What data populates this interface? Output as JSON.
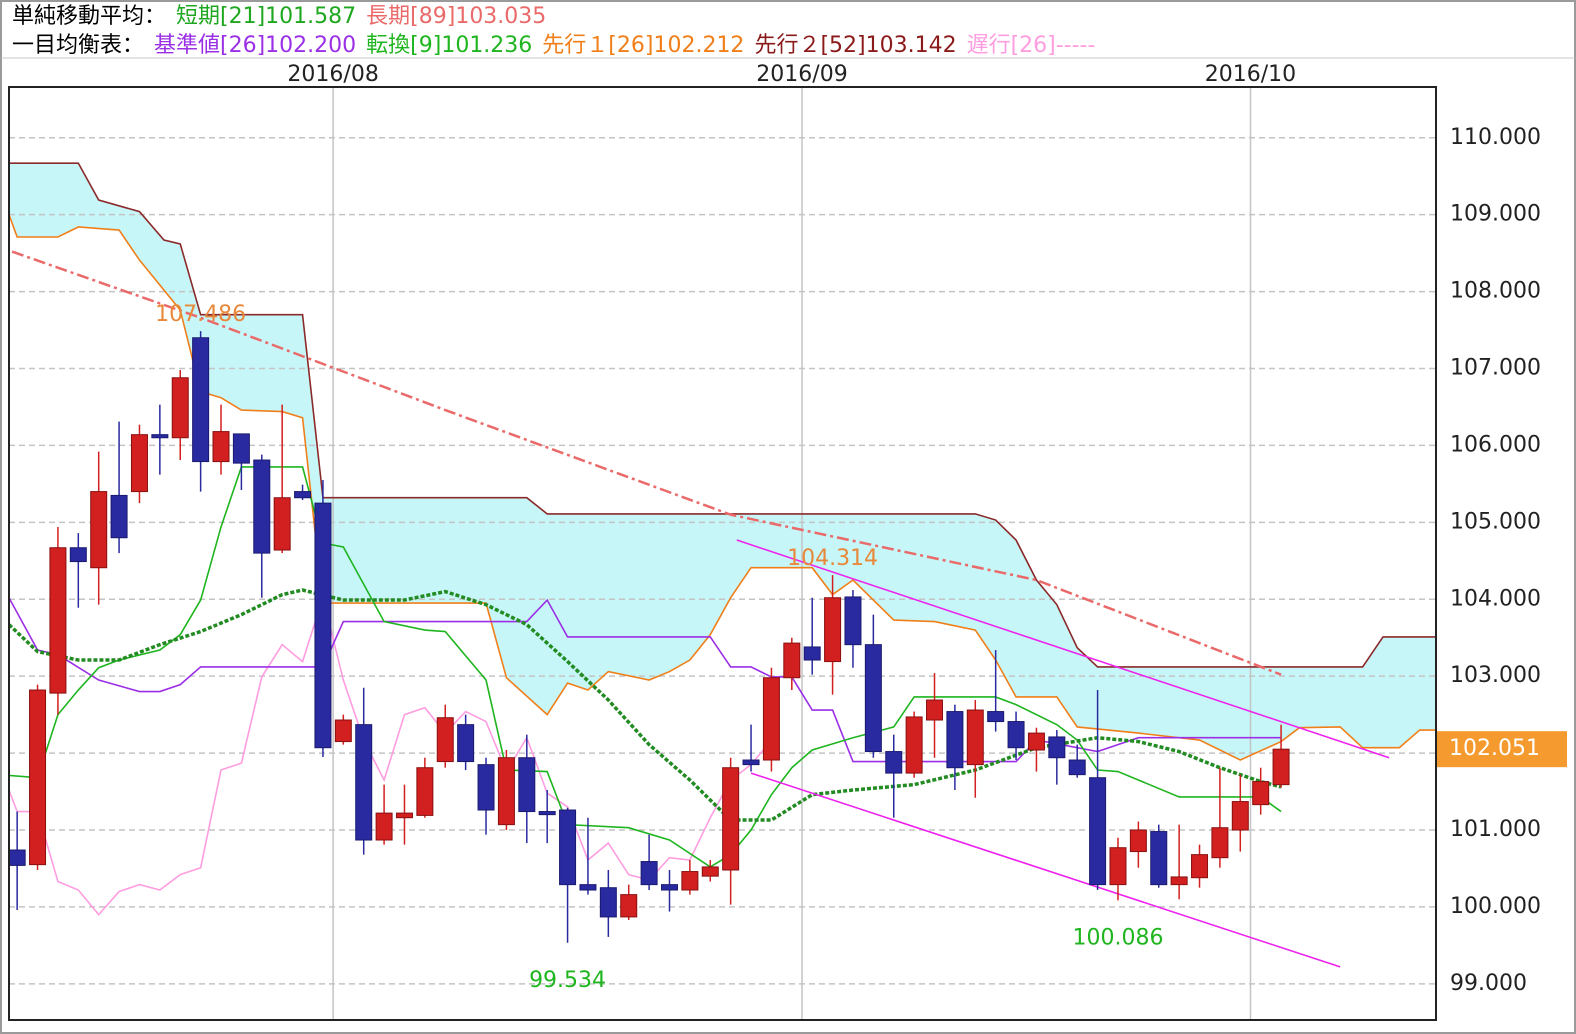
{
  "header": {
    "rows": [
      {
        "label": "単純移動平均：",
        "items": [
          {
            "text": "短期[21]101.587",
            "color": "#1fa71f"
          },
          {
            "text": "長期[89]103.035",
            "color": "#ea6a6a"
          }
        ]
      },
      {
        "label": "一目均衡表：",
        "items": [
          {
            "text": "基準値[26]102.200",
            "color": "#9b2fe6"
          },
          {
            "text": "転換[9]101.236",
            "color": "#1fb51f"
          },
          {
            "text": "先行１[26]102.212",
            "color": "#f07f1a"
          },
          {
            "text": "先行２[52]103.142",
            "color": "#8b1a1a"
          },
          {
            "text": "遅行[26]-----",
            "color": "#ff9de0"
          }
        ]
      }
    ]
  },
  "chart_data": {
    "type": "candlestick",
    "xlim": [
      -0.4,
      69.6
    ],
    "ylim": [
      98.53,
      110.66
    ],
    "xticks": [
      {
        "value": 15.5,
        "label": "2016/08"
      },
      {
        "value": 38.5,
        "label": "2016/09"
      },
      {
        "value": 60.5,
        "label": "2016/10"
      }
    ],
    "yticks": [
      {
        "value": 99,
        "label": "99.000"
      },
      {
        "value": 100,
        "label": "100.000"
      },
      {
        "value": 101,
        "label": "101.000"
      },
      {
        "value": 102,
        "label": "102.000"
      },
      {
        "value": 103,
        "label": "103.000"
      },
      {
        "value": 104,
        "label": "104.000"
      },
      {
        "value": 105,
        "label": "105.000"
      },
      {
        "value": 106,
        "label": "106.000"
      },
      {
        "value": 107,
        "label": "107.000"
      },
      {
        "value": 108,
        "label": "108.000"
      },
      {
        "value": 109,
        "label": "109.000"
      },
      {
        "value": 110,
        "label": "110.000"
      }
    ],
    "grid": true,
    "cloud_color": "#c6f6f8",
    "candles": {
      "up_color": "#d21f1f",
      "down_color": "#2a2aa0",
      "x": [
        0,
        1,
        2,
        3,
        4,
        5,
        6,
        7,
        8,
        9,
        10,
        11,
        12,
        13,
        14,
        15,
        16,
        17,
        18,
        19,
        20,
        21,
        22,
        23,
        24,
        25,
        26,
        27,
        28,
        29,
        30,
        31,
        32,
        33,
        34,
        35,
        36,
        37,
        38,
        39,
        40,
        41,
        42,
        43,
        44,
        45,
        46,
        47,
        48,
        49,
        50,
        51,
        52,
        53,
        54,
        55,
        56,
        57,
        58,
        59,
        60,
        61,
        62
      ],
      "open": [
        100.74,
        100.55,
        102.78,
        104.67,
        104.41,
        105.35,
        105.4,
        106.14,
        106.1,
        107.4,
        105.79,
        106.15,
        105.81,
        104.64,
        105.4,
        105.25,
        102.15,
        102.37,
        100.87,
        101.16,
        101.19,
        101.89,
        102.37,
        101.85,
        101.07,
        101.94,
        101.24,
        101.26,
        100.29,
        100.25,
        99.87,
        100.59,
        100.29,
        100.22,
        100.4,
        100.48,
        101.91,
        101.91,
        102.98,
        103.38,
        103.19,
        104.03,
        103.41,
        102.02,
        101.74,
        102.43,
        102.54,
        101.85,
        102.54,
        102.41,
        102.04,
        102.21,
        101.91,
        101.68,
        100.29,
        100.72,
        100.98,
        100.29,
        100.38,
        100.64,
        101.0,
        101.33,
        101.59
      ],
      "high": [
        101.24,
        102.89,
        104.94,
        104.86,
        105.92,
        106.31,
        106.27,
        106.53,
        106.98,
        107.486,
        106.53,
        106.15,
        105.88,
        106.53,
        105.49,
        105.55,
        102.5,
        102.85,
        101.59,
        101.59,
        101.94,
        102.63,
        102.5,
        101.94,
        102.04,
        102.24,
        101.52,
        101.29,
        101.16,
        100.48,
        100.29,
        100.94,
        100.48,
        100.61,
        100.61,
        101.94,
        102.37,
        103.11,
        103.5,
        104.02,
        104.314,
        104.12,
        103.8,
        102.24,
        102.54,
        103.04,
        102.63,
        102.69,
        103.34,
        102.54,
        102.33,
        102.3,
        102.11,
        102.82,
        100.9,
        101.11,
        101.07,
        101.07,
        100.81,
        101.81,
        101.72,
        101.81,
        102.37
      ],
      "low": [
        99.96,
        100.48,
        102.5,
        103.89,
        103.93,
        104.6,
        105.25,
        105.62,
        105.81,
        105.4,
        105.62,
        105.42,
        104.02,
        104.6,
        105.29,
        101.95,
        102.11,
        100.68,
        100.81,
        100.81,
        101.16,
        101.81,
        101.78,
        100.94,
        101.0,
        100.83,
        100.83,
        99.534,
        100.16,
        99.61,
        99.83,
        100.22,
        99.94,
        100.16,
        100.33,
        100.03,
        101.76,
        101.76,
        102.82,
        103.02,
        102.76,
        103.11,
        101.94,
        101.16,
        101.68,
        101.94,
        101.52,
        101.42,
        102.28,
        101.91,
        101.76,
        101.59,
        101.68,
        100.22,
        100.086,
        100.51,
        100.25,
        100.1,
        100.25,
        100.51,
        100.72,
        101.2,
        101.55
      ],
      "close": [
        100.54,
        102.82,
        104.67,
        104.49,
        105.4,
        104.8,
        106.14,
        106.1,
        106.88,
        105.79,
        106.18,
        105.77,
        104.6,
        105.32,
        105.32,
        102.07,
        102.43,
        100.87,
        101.22,
        101.22,
        101.81,
        102.46,
        101.89,
        101.26,
        101.94,
        101.24,
        101.2,
        100.29,
        100.22,
        99.87,
        100.16,
        100.29,
        100.22,
        100.46,
        100.52,
        101.81,
        101.85,
        102.98,
        103.43,
        103.21,
        104.02,
        103.41,
        102.02,
        101.74,
        102.47,
        102.69,
        101.81,
        102.56,
        102.41,
        102.07,
        102.26,
        101.94,
        101.72,
        100.29,
        100.77,
        101.0,
        100.29,
        100.39,
        100.68,
        101.03,
        101.37,
        101.63,
        102.051
      ]
    },
    "series": [
      {
        "color": "#8b2a2a",
        "style": "solid",
        "cloud_edge": true,
        "x": [
          -0.4,
          3,
          4,
          6,
          7.2,
          8,
          9,
          14,
          15,
          25,
          26,
          47,
          48,
          49,
          50,
          51,
          52,
          53,
          54,
          66,
          67,
          69.6
        ],
        "values": [
          109.67,
          109.67,
          109.19,
          109.04,
          108.67,
          108.62,
          107.7,
          107.7,
          105.32,
          105.32,
          105.11,
          105.11,
          105.03,
          104.77,
          104.25,
          103.93,
          103.37,
          103.12,
          103.12,
          103.12,
          103.51,
          103.51
        ]
      },
      {
        "color": "#f07f1a",
        "style": "solid",
        "cloud_edge": true,
        "x": [
          -0.4,
          0,
          2,
          3,
          5,
          6,
          8,
          9,
          10,
          11,
          13,
          14,
          15,
          23,
          24,
          26,
          27,
          28,
          29,
          31,
          32,
          33,
          34,
          35,
          36,
          39,
          40,
          41,
          43,
          45,
          47,
          48,
          49,
          51,
          52,
          55,
          58,
          60,
          62,
          62.9,
          64.9,
          66,
          67.8,
          68.8,
          69.6
        ],
        "values": [
          109.0,
          108.71,
          108.71,
          108.84,
          108.8,
          108.41,
          107.76,
          106.7,
          106.62,
          106.46,
          106.44,
          106.36,
          103.95,
          103.95,
          102.98,
          102.5,
          102.91,
          102.82,
          103.06,
          102.95,
          103.06,
          103.21,
          103.54,
          104.02,
          104.41,
          104.41,
          104.06,
          104.25,
          103.73,
          103.71,
          103.6,
          103.21,
          102.73,
          102.73,
          102.34,
          102.26,
          102.17,
          101.91,
          102.15,
          102.33,
          102.34,
          102.07,
          102.07,
          102.3,
          102.3
        ]
      },
      {
        "color": "#ea6a6a",
        "style": "dashdot",
        "x": [
          -0.25,
          9,
          21,
          35,
          50,
          62
        ],
        "values": [
          108.52,
          107.66,
          106.46,
          105.1,
          104.25,
          103.02
        ]
      },
      {
        "color": "#ff9de0",
        "style": "solid",
        "x": [
          -0.4,
          0,
          1,
          2,
          3,
          4,
          5,
          6,
          7,
          8,
          9,
          10,
          11,
          12,
          13,
          14,
          15,
          16,
          17,
          18,
          19,
          20,
          21,
          22,
          23,
          24,
          25,
          26,
          27,
          28,
          29,
          30,
          31,
          32,
          33,
          34,
          35,
          36,
          37
        ],
        "values": [
          101.52,
          101.24,
          101.24,
          100.33,
          100.22,
          99.9,
          100.2,
          100.29,
          100.22,
          100.42,
          100.51,
          101.78,
          101.87,
          102.99,
          103.41,
          103.19,
          104.02,
          102.95,
          102.17,
          101.65,
          102.5,
          102.59,
          102.26,
          102.54,
          102.41,
          101.76,
          102.2,
          101.48,
          101.3,
          100.61,
          100.83,
          100.42,
          100.35,
          100.64,
          100.61,
          101.16,
          101.65,
          101.85,
          102.17
        ]
      },
      {
        "color": "#9b2fe6",
        "style": "solid",
        "x": [
          -0.4,
          1,
          2,
          4,
          6,
          7,
          8,
          9,
          15,
          16,
          25,
          26,
          27,
          34,
          35,
          36,
          37,
          38,
          39,
          40,
          41,
          49,
          50,
          53,
          54,
          55,
          62
        ],
        "values": [
          104.02,
          103.34,
          103.28,
          102.95,
          102.8,
          102.8,
          102.89,
          103.12,
          103.12,
          103.71,
          103.71,
          103.99,
          103.51,
          103.51,
          103.12,
          103.12,
          102.99,
          102.99,
          102.56,
          102.56,
          101.89,
          101.89,
          102.17,
          102.02,
          102.11,
          102.2,
          102.2
        ]
      },
      {
        "color": "#1fb51f",
        "style": "solid",
        "x": [
          -0.4,
          1,
          2,
          3,
          4,
          5,
          7,
          8,
          9,
          10,
          11,
          14,
          15,
          16,
          18,
          20,
          21,
          23,
          24,
          26,
          27,
          30,
          32,
          34,
          35,
          36,
          37,
          38,
          39,
          41,
          43,
          44,
          48,
          49,
          51,
          52,
          53,
          54,
          57,
          61,
          62
        ],
        "values": [
          101.71,
          101.68,
          102.5,
          102.82,
          103.11,
          103.21,
          103.34,
          103.54,
          103.99,
          104.94,
          105.72,
          105.72,
          104.73,
          104.68,
          103.71,
          103.6,
          103.58,
          102.95,
          101.78,
          101.76,
          101.07,
          101.03,
          100.87,
          100.52,
          100.68,
          101.0,
          101.46,
          101.81,
          102.04,
          102.2,
          102.34,
          102.73,
          102.73,
          102.63,
          102.37,
          102.17,
          101.78,
          101.76,
          101.43,
          101.43,
          101.24
        ]
      },
      {
        "color": "#228b22",
        "style": "dotted",
        "x": [
          -0.4,
          1,
          3,
          5,
          7,
          9,
          11,
          13,
          14,
          16,
          19,
          21,
          23,
          25,
          27,
          29,
          31,
          33,
          35,
          37,
          39,
          41,
          44,
          47,
          50,
          53,
          55,
          57,
          59,
          61,
          62
        ],
        "values": [
          103.67,
          103.32,
          103.21,
          103.21,
          103.41,
          103.58,
          103.8,
          104.06,
          104.12,
          103.99,
          103.99,
          104.1,
          103.93,
          103.67,
          103.19,
          102.69,
          102.11,
          101.65,
          101.13,
          101.13,
          101.46,
          101.52,
          101.59,
          101.78,
          102.07,
          102.2,
          102.15,
          102.02,
          101.81,
          101.63,
          101.56
        ]
      },
      {
        "color": "#ee22ee",
        "style": "solid",
        "x": [
          35.3,
          67.3
        ],
        "values": [
          104.77,
          101.94
        ]
      },
      {
        "color": "#ee22ee",
        "style": "solid",
        "x": [
          36,
          64.9
        ],
        "values": [
          101.74,
          99.22
        ]
      }
    ],
    "annotations": [
      {
        "candle": 9,
        "at": "high",
        "value": 107.486,
        "color": "#e8883a"
      },
      {
        "candle": 40,
        "at": "high",
        "value": 104.314,
        "color": "#e8883a"
      },
      {
        "candle": 27,
        "at": "low",
        "value": 99.534,
        "color": "#1fb51f"
      },
      {
        "candle": 54,
        "at": "low",
        "value": 100.086,
        "color": "#1fb51f"
      }
    ],
    "last_price": {
      "value": 102.051,
      "color": "#f59a2e"
    }
  }
}
